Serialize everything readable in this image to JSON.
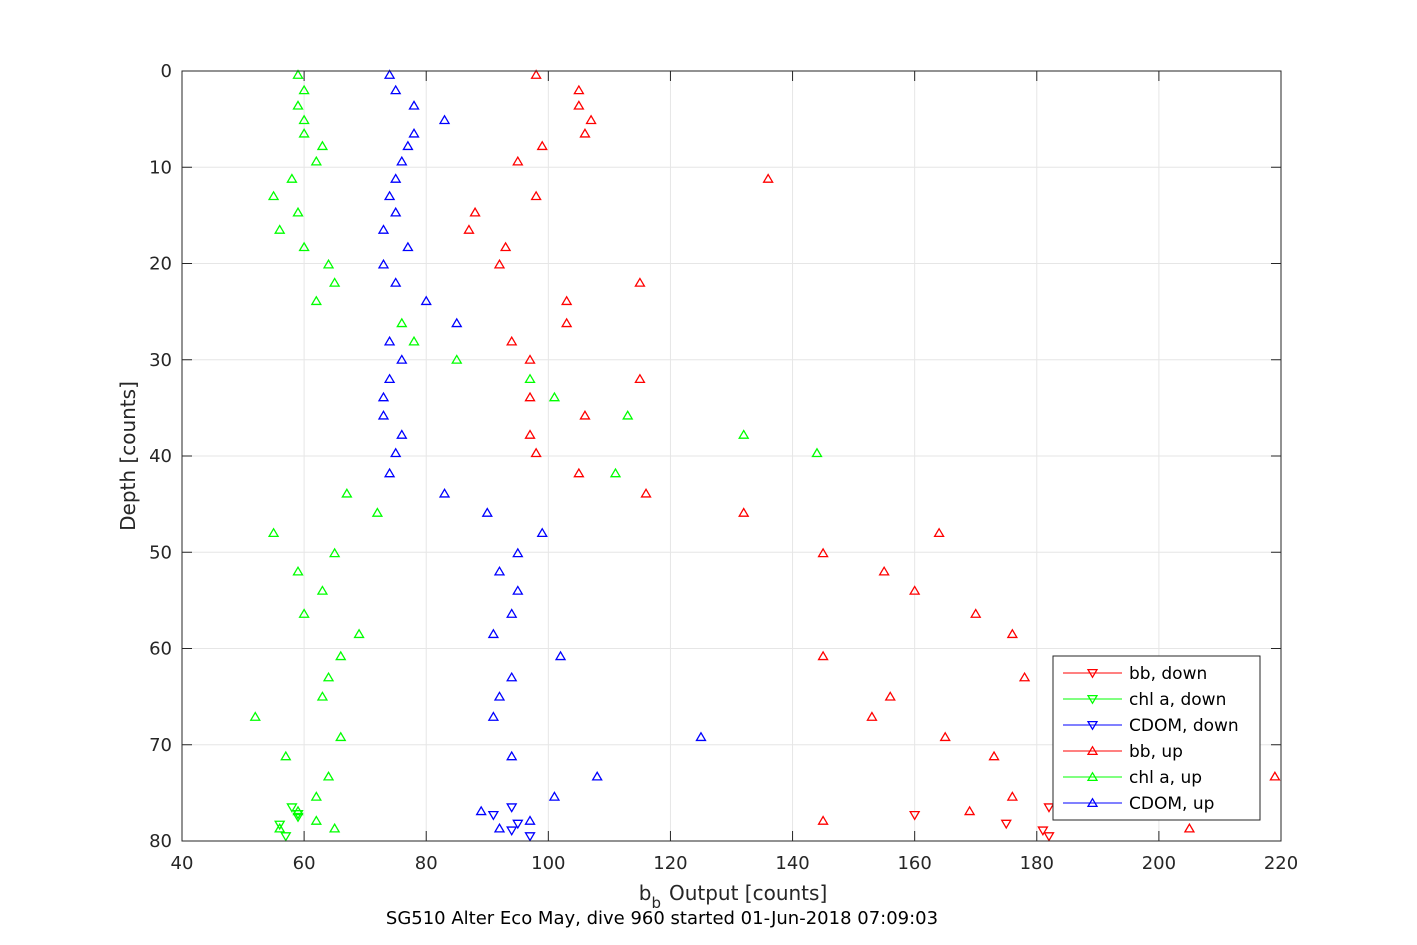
{
  "chart_data": {
    "type": "scatter",
    "title": "",
    "footer": "SG510 Alter Eco May, dive 960 started 01-Jun-2018 07:09:03",
    "xlabel": "b",
    "xlabel_sub": "b",
    "xlabel_rest": "Output [counts]",
    "ylabel": "Depth [counts]",
    "xlim": [
      40,
      220
    ],
    "ylim": [
      0,
      80
    ],
    "y_reversed": true,
    "grid": true,
    "legend_position": "bottom-right",
    "xticks": [
      "40",
      "60",
      "80",
      "100",
      "120",
      "140",
      "160",
      "180",
      "200",
      "220"
    ],
    "yticks": [
      "0",
      "10",
      "20",
      "30",
      "40",
      "50",
      "60",
      "70",
      "80"
    ],
    "series": [
      {
        "name": "bb, down",
        "color": "#ff0000",
        "marker": "triangle-down",
        "points": [
          [
            182,
            76.5
          ],
          [
            160,
            77.3
          ],
          [
            175,
            78.2
          ],
          [
            181,
            78.9
          ],
          [
            182,
            79.5
          ]
        ]
      },
      {
        "name": "chl a, down",
        "color": "#00ff00",
        "marker": "triangle-down",
        "points": [
          [
            58,
            76.5
          ],
          [
            59,
            77.2
          ],
          [
            56,
            78.3
          ],
          [
            57,
            79.5
          ],
          [
            59,
            77.5
          ]
        ]
      },
      {
        "name": "CDOM, down",
        "color": "#0000ff",
        "marker": "triangle-down",
        "points": [
          [
            94,
            76.5
          ],
          [
            91,
            77.3
          ],
          [
            95,
            78.2
          ],
          [
            94,
            78.9
          ],
          [
            97,
            79.5
          ]
        ]
      },
      {
        "name": "bb, up",
        "color": "#ff0000",
        "marker": "triangle-up",
        "points": [
          [
            98,
            0.4
          ],
          [
            105,
            2.0
          ],
          [
            105,
            3.6
          ],
          [
            107,
            5.1
          ],
          [
            106,
            6.5
          ],
          [
            99,
            7.8
          ],
          [
            95,
            9.4
          ],
          [
            136,
            11.2
          ],
          [
            98,
            13.0
          ],
          [
            88,
            14.7
          ],
          [
            87,
            16.5
          ],
          [
            93,
            18.3
          ],
          [
            92,
            20.1
          ],
          [
            115,
            22.0
          ],
          [
            103,
            23.9
          ],
          [
            103,
            26.2
          ],
          [
            94,
            28.1
          ],
          [
            97,
            30.0
          ],
          [
            115,
            32.0
          ],
          [
            97,
            33.9
          ],
          [
            106,
            35.8
          ],
          [
            97,
            37.8
          ],
          [
            98,
            39.7
          ],
          [
            105,
            41.8
          ],
          [
            116,
            43.9
          ],
          [
            132,
            45.9
          ],
          [
            164,
            48.0
          ],
          [
            145,
            50.1
          ],
          [
            155,
            52.0
          ],
          [
            160,
            54.0
          ],
          [
            170,
            56.4
          ],
          [
            176,
            58.5
          ],
          [
            145,
            60.8
          ],
          [
            178,
            63.0
          ],
          [
            156,
            65.0
          ],
          [
            153,
            67.1
          ],
          [
            165,
            69.2
          ],
          [
            173,
            71.2
          ],
          [
            219,
            73.3
          ],
          [
            176,
            75.4
          ],
          [
            169,
            76.9
          ],
          [
            145,
            77.9
          ],
          [
            205,
            78.7
          ]
        ]
      },
      {
        "name": "chl a, up",
        "color": "#00ff00",
        "marker": "triangle-up",
        "points": [
          [
            59,
            0.4
          ],
          [
            60,
            2.0
          ],
          [
            59,
            3.6
          ],
          [
            60,
            5.1
          ],
          [
            60,
            6.5
          ],
          [
            63,
            7.8
          ],
          [
            62,
            9.4
          ],
          [
            58,
            11.2
          ],
          [
            55,
            13.0
          ],
          [
            59,
            14.7
          ],
          [
            56,
            16.5
          ],
          [
            60,
            18.3
          ],
          [
            64,
            20.1
          ],
          [
            65,
            22.0
          ],
          [
            62,
            23.9
          ],
          [
            76,
            26.2
          ],
          [
            78,
            28.1
          ],
          [
            85,
            30.0
          ],
          [
            97,
            32.0
          ],
          [
            101,
            33.9
          ],
          [
            113,
            35.8
          ],
          [
            132,
            37.8
          ],
          [
            144,
            39.7
          ],
          [
            111,
            41.8
          ],
          [
            67,
            43.9
          ],
          [
            72,
            45.9
          ],
          [
            55,
            48.0
          ],
          [
            65,
            50.1
          ],
          [
            59,
            52.0
          ],
          [
            63,
            54.0
          ],
          [
            60,
            56.4
          ],
          [
            69,
            58.5
          ],
          [
            66,
            60.8
          ],
          [
            64,
            63.0
          ],
          [
            63,
            65.0
          ],
          [
            52,
            67.1
          ],
          [
            66,
            69.2
          ],
          [
            57,
            71.2
          ],
          [
            64,
            73.3
          ],
          [
            62,
            75.4
          ],
          [
            59,
            76.9
          ],
          [
            62,
            77.9
          ],
          [
            65,
            78.7
          ],
          [
            56,
            78.7
          ]
        ]
      },
      {
        "name": "CDOM, up",
        "color": "#0000ff",
        "marker": "triangle-up",
        "points": [
          [
            74,
            0.4
          ],
          [
            75,
            2.0
          ],
          [
            78,
            3.6
          ],
          [
            83,
            5.1
          ],
          [
            78,
            6.5
          ],
          [
            77,
            7.8
          ],
          [
            76,
            9.4
          ],
          [
            75,
            11.2
          ],
          [
            74,
            13.0
          ],
          [
            75,
            14.7
          ],
          [
            73,
            16.5
          ],
          [
            77,
            18.3
          ],
          [
            73,
            20.1
          ],
          [
            75,
            22.0
          ],
          [
            80,
            23.9
          ],
          [
            85,
            26.2
          ],
          [
            74,
            28.1
          ],
          [
            76,
            30.0
          ],
          [
            74,
            32.0
          ],
          [
            73,
            33.9
          ],
          [
            73,
            35.8
          ],
          [
            76,
            37.8
          ],
          [
            75,
            39.7
          ],
          [
            74,
            41.8
          ],
          [
            83,
            43.9
          ],
          [
            90,
            45.9
          ],
          [
            99,
            48.0
          ],
          [
            95,
            50.1
          ],
          [
            92,
            52.0
          ],
          [
            95,
            54.0
          ],
          [
            94,
            56.4
          ],
          [
            91,
            58.5
          ],
          [
            102,
            60.8
          ],
          [
            94,
            63.0
          ],
          [
            92,
            65.0
          ],
          [
            91,
            67.1
          ],
          [
            125,
            69.2
          ],
          [
            94,
            71.2
          ],
          [
            108,
            73.3
          ],
          [
            101,
            75.4
          ],
          [
            89,
            76.9
          ],
          [
            97,
            77.9
          ],
          [
            92,
            78.7
          ]
        ]
      }
    ]
  }
}
